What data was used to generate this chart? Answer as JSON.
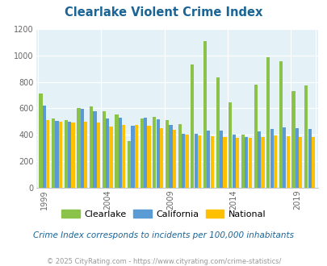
{
  "title": "Clearlake Violent Crime Index",
  "title_color": "#1a6496",
  "subtitle": "Crime Index corresponds to incidents per 100,000 inhabitants",
  "footer": "© 2025 CityRating.com - https://www.cityrating.com/crime-statistics/",
  "years": [
    1999,
    2000,
    2001,
    2002,
    2003,
    2004,
    2005,
    2006,
    2007,
    2008,
    2009,
    2010,
    2011,
    2012,
    2013,
    2014,
    2015,
    2016,
    2017,
    2018,
    2019,
    2020
  ],
  "clearlake": [
    715,
    525,
    510,
    600,
    615,
    580,
    555,
    355,
    525,
    535,
    510,
    480,
    930,
    1110,
    835,
    645,
    400,
    780,
    985,
    960,
    730,
    775
  ],
  "california": [
    620,
    505,
    500,
    595,
    580,
    525,
    530,
    470,
    530,
    520,
    475,
    405,
    405,
    430,
    430,
    400,
    380,
    425,
    445,
    455,
    450,
    445
  ],
  "national": [
    510,
    500,
    495,
    500,
    490,
    465,
    475,
    475,
    470,
    450,
    435,
    400,
    395,
    390,
    380,
    375,
    375,
    385,
    395,
    390,
    380,
    380
  ],
  "color_clearlake": "#8bc34a",
  "color_california": "#5b9bd5",
  "color_national": "#ffc000",
  "bg_color": "#e4f2f7",
  "ylim": [
    0,
    1200
  ],
  "yticks": [
    0,
    200,
    400,
    600,
    800,
    1000,
    1200
  ],
  "xlabel_years": [
    1999,
    2004,
    2009,
    2014,
    2019
  ],
  "subtitle_color": "#1a6496",
  "footer_color": "#999999",
  "grid_color": "#ffffff"
}
